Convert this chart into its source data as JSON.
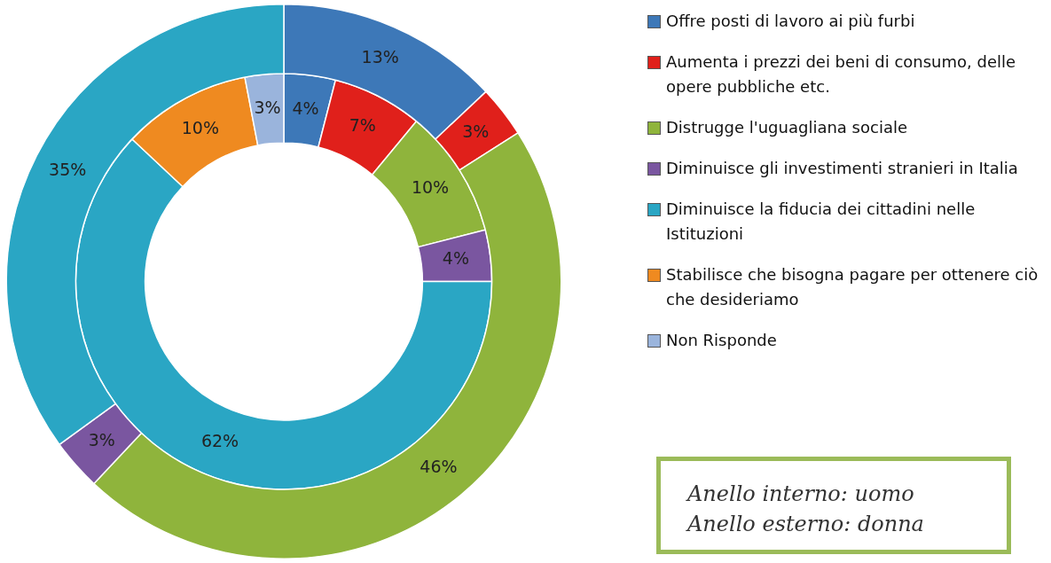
{
  "chart_data": {
    "type": "donut",
    "categories": [
      "Offre posti di lavoro ai più furbi",
      "Aumenta i prezzi dei beni di consumo, delle opere pubbliche etc.",
      "Distrugge l'uguagliana sociale",
      "Diminuisce gli investimenti stranieri in Italia",
      "Diminuisce la fiducia dei cittadini nelle Istituzioni",
      "Stabilisce che bisogna pagare per ottenere ciò che desideriamo",
      "Non Risponde"
    ],
    "colors": [
      "#3d78b8",
      "#e0201b",
      "#8fb43c",
      "#7a56a0",
      "#2aa6c4",
      "#ef8a20",
      "#9ab4dc"
    ],
    "series": [
      {
        "values": [
          13,
          3,
          46,
          3,
          35,
          null,
          null
        ],
        "value_labels": [
          "13%",
          "3%",
          "46%",
          "3%",
          "35%",
          null,
          null
        ]
      },
      {
        "values": [
          4,
          7,
          10,
          4,
          62,
          10,
          3
        ],
        "value_labels": [
          "4%",
          "7%",
          "10%",
          "4%",
          "62%",
          "10%",
          "3%"
        ]
      }
    ],
    "legend": "right",
    "annotations": [
      "Anello interno: uomo",
      "Anello esterno: donna"
    ]
  }
}
